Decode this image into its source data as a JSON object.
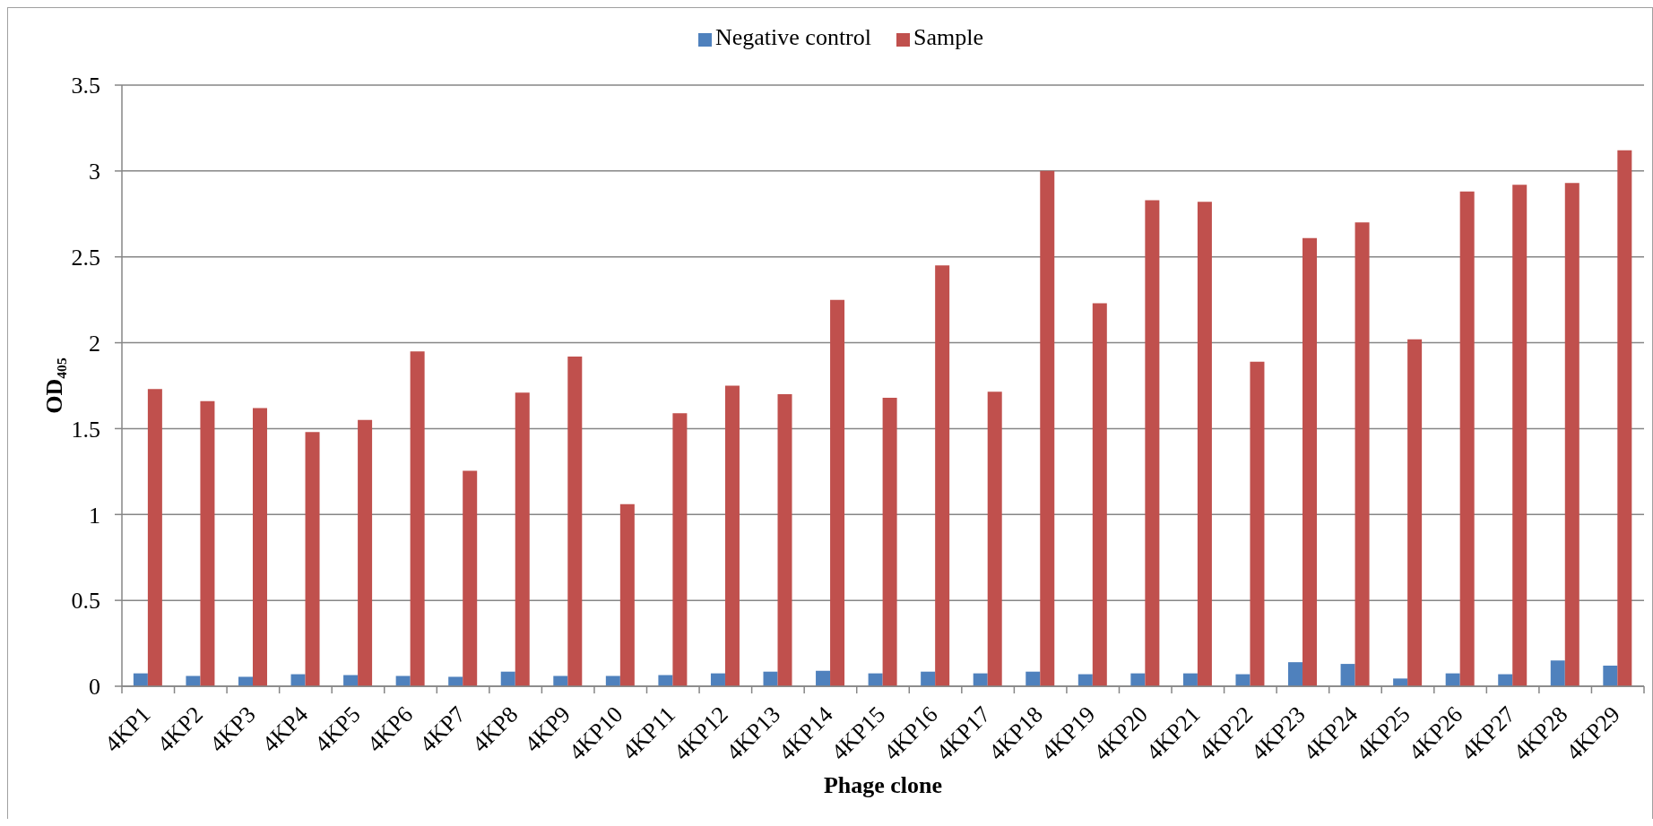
{
  "chart_data": {
    "type": "bar",
    "xlabel": "Phage clone",
    "ylabel": "OD₄₀₅",
    "categories": [
      "4KP1",
      "4KP2",
      "4KP3",
      "4KP4",
      "4KP5",
      "4KP6",
      "4KP7",
      "4KP8",
      "4KP9",
      "4KP10",
      "4KP11",
      "4KP12",
      "4KP13",
      "4KP14",
      "4KP15",
      "4KP16",
      "4KP17",
      "4KP18",
      "4KP19",
      "4KP20",
      "4KP21",
      "4KP22",
      "4KP23",
      "4KP24",
      "4KP25",
      "4KP26",
      "4KP27",
      "4KP28",
      "4KP29"
    ],
    "series": [
      {
        "name": "Negative control",
        "color": "#4f81bd",
        "values": [
          0.075,
          0.06,
          0.055,
          0.07,
          0.065,
          0.06,
          0.055,
          0.085,
          0.06,
          0.06,
          0.065,
          0.075,
          0.085,
          0.09,
          0.075,
          0.085,
          0.075,
          0.085,
          0.07,
          0.075,
          0.075,
          0.07,
          0.14,
          0.13,
          0.045,
          0.075,
          0.07,
          0.15,
          0.12
        ]
      },
      {
        "name": "Sample",
        "color": "#c0504d",
        "values": [
          1.73,
          1.66,
          1.62,
          1.48,
          1.55,
          1.95,
          1.255,
          1.71,
          1.92,
          1.06,
          1.59,
          1.75,
          1.7,
          2.25,
          1.68,
          2.45,
          1.715,
          3.0,
          2.23,
          2.83,
          2.82,
          1.89,
          2.61,
          2.7,
          2.02,
          2.88,
          2.92,
          2.93,
          3.12
        ]
      }
    ],
    "ylim": [
      0,
      3.5
    ],
    "yticks": [
      0,
      0.5,
      1,
      1.5,
      2,
      2.5,
      3,
      3.5
    ],
    "grid": "y",
    "legend": "top"
  }
}
